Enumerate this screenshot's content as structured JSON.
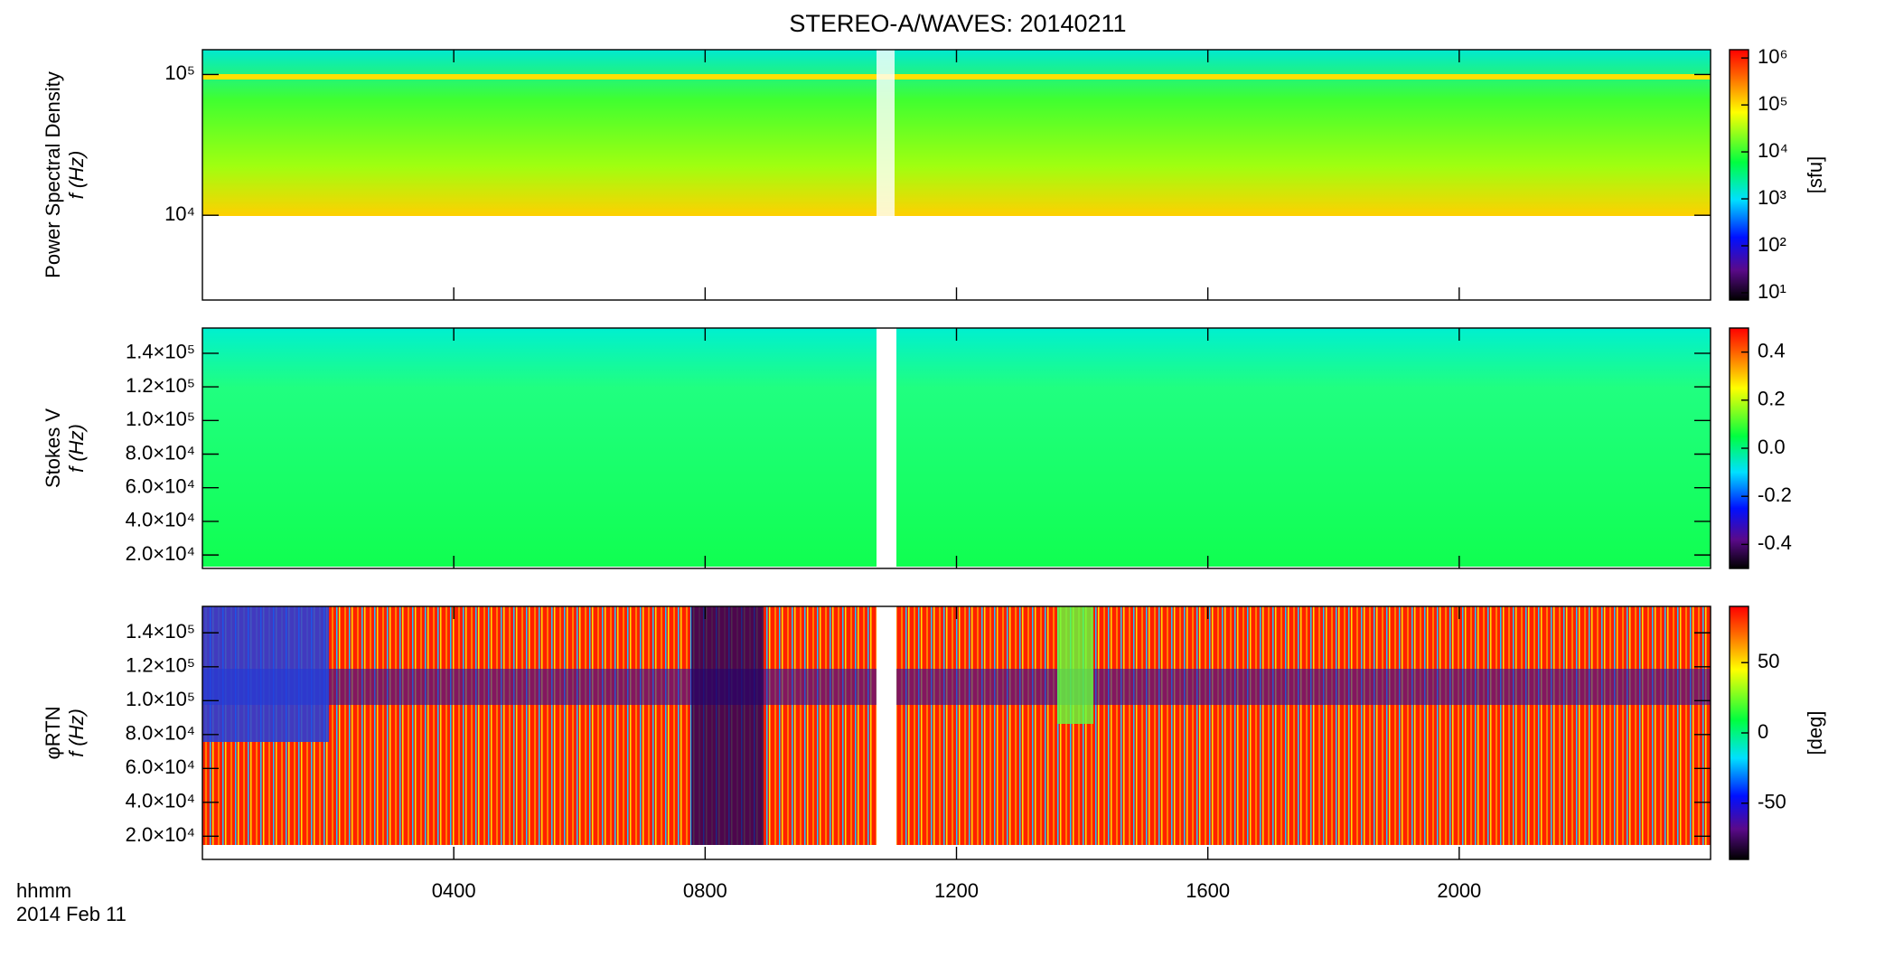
{
  "chart_data": [
    {
      "type": "heatmap",
      "title": "STEREO-A/WAVES: 20140211",
      "ylabel": [
        "Power Spectral Density",
        "f (Hz)"
      ],
      "ylog": true,
      "ylim": [
        2500,
        150000
      ],
      "yticks": [
        {
          "value": 10000,
          "label": "10⁴"
        },
        {
          "value": 100000,
          "label": "10⁵"
        }
      ],
      "xlim": [
        0,
        1440
      ],
      "xticks": [
        240,
        480,
        720,
        960,
        1200
      ],
      "colorbar": {
        "label": "[sfu]",
        "log": true,
        "lim": [
          7,
          1500000
        ],
        "ticks": [
          {
            "value": 10,
            "label": "10¹"
          },
          {
            "value": 100,
            "label": "10²"
          },
          {
            "value": 1000,
            "label": "10³"
          },
          {
            "value": 10000,
            "label": "10⁴"
          },
          {
            "value": 100000,
            "label": "10⁵"
          },
          {
            "value": 1000000,
            "label": "10⁶"
          }
        ]
      }
    },
    {
      "type": "heatmap",
      "ylabel": [
        "Stokes V",
        "f (Hz)"
      ],
      "ylog": false,
      "ylim": [
        12000,
        155000
      ],
      "yticks": [
        {
          "value": 20000,
          "label": "2.0×10⁴"
        },
        {
          "value": 40000,
          "label": "4.0×10⁴"
        },
        {
          "value": 60000,
          "label": "6.0×10⁴"
        },
        {
          "value": 80000,
          "label": "8.0×10⁴"
        },
        {
          "value": 100000,
          "label": "1.0×10⁵"
        },
        {
          "value": 120000,
          "label": "1.2×10⁵"
        },
        {
          "value": 140000,
          "label": "1.4×10⁵"
        }
      ],
      "xlim": [
        0,
        1440
      ],
      "xticks": [
        240,
        480,
        720,
        960,
        1200
      ],
      "colorbar": {
        "log": false,
        "lim": [
          -0.5,
          0.5
        ],
        "ticks": [
          -0.4,
          -0.2,
          {
            "value": 0,
            "label": "0.0"
          },
          0.2,
          0.4
        ]
      }
    },
    {
      "type": "heatmap",
      "ylabel": [
        "φRTN",
        "f (Hz)"
      ],
      "ylog": false,
      "ylim": [
        6300,
        155600
      ],
      "yticks": [
        {
          "value": 20000,
          "label": "2.0×10⁴"
        },
        {
          "value": 40000,
          "label": "4.0×10⁴"
        },
        {
          "value": 60000,
          "label": "6.0×10⁴"
        },
        {
          "value": 80000,
          "label": "8.0×10⁴"
        },
        {
          "value": 100000,
          "label": "1.0×10⁵"
        },
        {
          "value": 120000,
          "label": "1.2×10⁵"
        },
        {
          "value": 140000,
          "label": "1.4×10⁵"
        }
      ],
      "xlim": [
        0,
        1440
      ],
      "xticks": [
        {
          "value": 240,
          "label": "0400"
        },
        {
          "value": 480,
          "label": "0800"
        },
        {
          "value": 720,
          "label": "1200"
        },
        {
          "value": 960,
          "label": "1600"
        },
        {
          "value": 1200,
          "label": "2000"
        }
      ],
      "xlabel": "hhmm",
      "date": "2014 Feb 11",
      "colorbar": {
        "label": "[deg]",
        "log": false,
        "lim": [
          -90,
          90
        ],
        "ticks": [
          -50,
          0,
          50
        ]
      }
    }
  ]
}
